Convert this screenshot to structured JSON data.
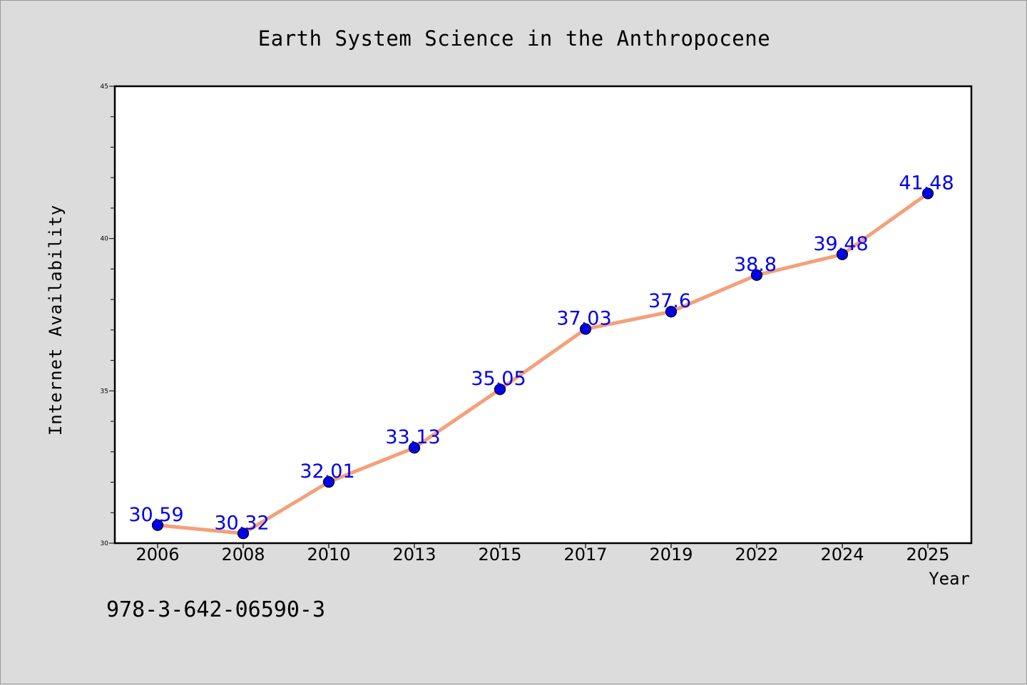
{
  "chart_data": {
    "type": "line",
    "title": "Earth System Science in the Anthropocene",
    "xlabel": "Year",
    "ylabel": "Internet Availability",
    "categories": [
      "2006",
      "2008",
      "2010",
      "2013",
      "2015",
      "2017",
      "2019",
      "2022",
      "2024",
      "2025"
    ],
    "values": [
      30.59,
      30.32,
      32.01,
      33.13,
      35.05,
      37.03,
      37.6,
      38.8,
      39.48,
      41.48
    ],
    "data_labels": [
      "30.59",
      "30.32",
      "32.01",
      "33.13",
      "35.05",
      "37.03",
      "37.6",
      "38.8",
      "39.48",
      "41.48"
    ],
    "ylim": [
      30,
      45
    ],
    "yticks": [
      "30",
      "35",
      "40",
      "45"
    ],
    "grid": false,
    "line_color": "#f4a07a",
    "marker_color": "#0000ee",
    "label_color": "#0000ee"
  },
  "footer_text": "978-3-642-06590-3"
}
